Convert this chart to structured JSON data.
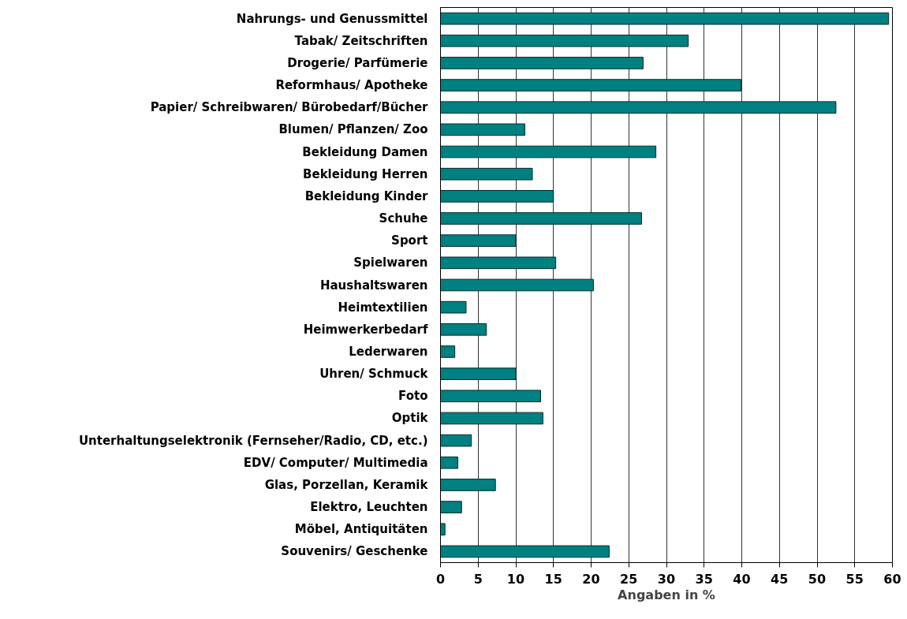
{
  "chart_data": {
    "type": "bar",
    "orientation": "horizontal",
    "xlabel": "Angaben in %",
    "categories": [
      "Nahrungs- und Genussmittel",
      "Tabak/ Zeitschriften",
      "Drogerie/ Parfümerie",
      "Reformhaus/ Apotheke",
      "Papier/ Schreibwaren/ Bürobedarf/Bücher",
      "Blumen/ Pflanzen/ Zoo",
      "Bekleidung Damen",
      "Bekleidung Herren",
      "Bekleidung Kinder",
      "Schuhe",
      "Sport",
      "Spielwaren",
      "Haushaltswaren",
      "Heimtextilien",
      "Heimwerkerbedarf",
      "Lederwaren",
      "Uhren/ Schmuck",
      "Foto",
      "Optik",
      "Unterhaltungselektronik (Fernseher/Radio, CD, etc.)",
      "EDV/ Computer/ Multimedia",
      "Glas, Porzellan, Keramik",
      "Elektro, Leuchten",
      "Möbel, Antiquitäten",
      "Souvenirs/ Geschenke"
    ],
    "values": [
      59.5,
      32.9,
      26.9,
      39.9,
      52.5,
      11.2,
      28.6,
      12.2,
      15.0,
      26.7,
      10.0,
      15.3,
      20.3,
      3.4,
      6.1,
      1.9,
      10.0,
      13.3,
      13.6,
      4.1,
      2.3,
      7.3,
      2.8,
      0.6,
      22.4
    ],
    "color": "#008080",
    "xlim": [
      0,
      60
    ],
    "xticks": [
      0,
      5,
      10,
      15,
      20,
      25,
      30,
      35,
      40,
      45,
      50,
      55,
      60
    ],
    "grid": "x"
  }
}
